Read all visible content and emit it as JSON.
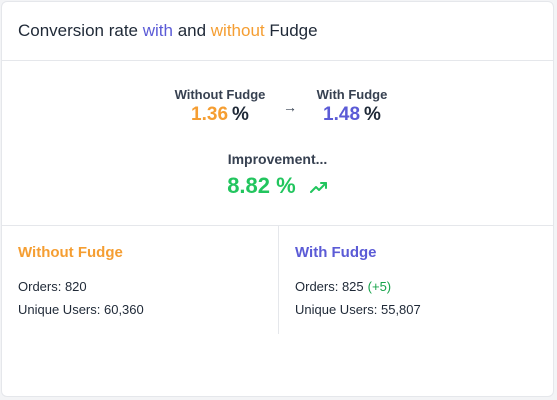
{
  "header": {
    "title_prefix": "Conversion rate ",
    "title_with": "with",
    "title_and": " and ",
    "title_without": "without",
    "title_suffix": " Fudge"
  },
  "summary": {
    "without": {
      "label": "Without Fudge",
      "value": "1.36",
      "unit": "%"
    },
    "with": {
      "label": "With Fudge",
      "value": "1.48",
      "unit": "%"
    },
    "arrow_icon": "arrow-right-icon",
    "improvement": {
      "label": "Improvement...",
      "value": "8.82 %",
      "icon": "trending-up-icon"
    }
  },
  "details": {
    "without": {
      "title": "Without Fudge",
      "orders_label": "Orders: 820",
      "users_label": "Unique Users: 60,360"
    },
    "with": {
      "title": "With Fudge",
      "orders_label": "Orders: 825",
      "orders_delta": "(+5)",
      "users_label": "Unique Users: 55,807"
    }
  },
  "colors": {
    "with_accent": "#5b5bd6",
    "without_accent": "#f59e32",
    "positive": "#22c55e"
  }
}
